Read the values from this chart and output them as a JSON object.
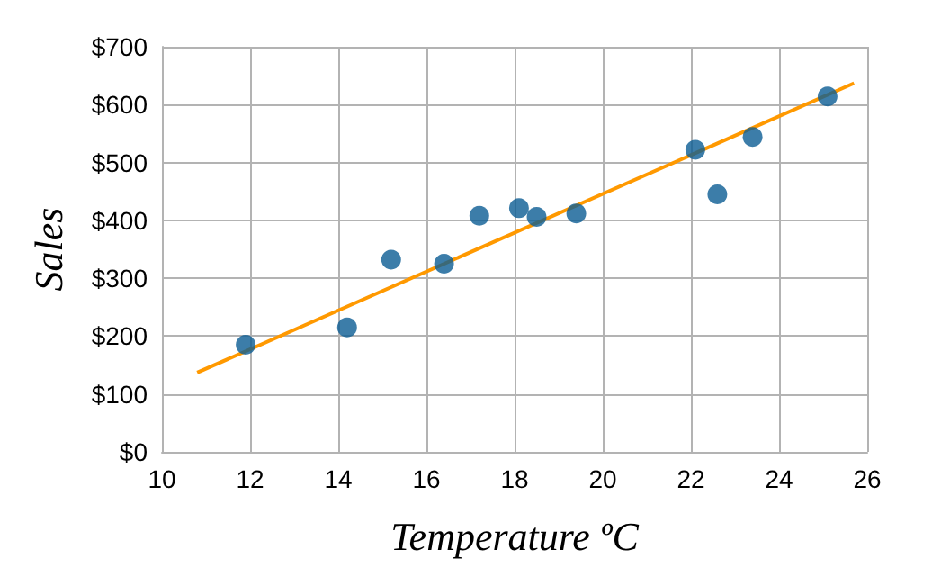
{
  "chart_data": {
    "type": "scatter",
    "xlabel": "Temperature ºC",
    "ylabel": "Sales",
    "xlim": [
      10,
      26
    ],
    "xticks": [
      10,
      12,
      14,
      16,
      18,
      20,
      22,
      24,
      26
    ],
    "ylim": [
      0,
      700
    ],
    "yticks": [
      {
        "value": 0,
        "label": "$0"
      },
      {
        "value": 100,
        "label": "$100"
      },
      {
        "value": 200,
        "label": "$200"
      },
      {
        "value": 300,
        "label": "$300"
      },
      {
        "value": 400,
        "label": "$400"
      },
      {
        "value": 500,
        "label": "$500"
      },
      {
        "value": 600,
        "label": "$600"
      },
      {
        "value": 700,
        "label": "$700"
      }
    ],
    "grid": true,
    "series": [
      {
        "marker": "circle",
        "color": "#0b5c94",
        "x": [
          14.2,
          16.4,
          11.9,
          15.2,
          18.5,
          22.1,
          19.4,
          25.1,
          23.4,
          18.1,
          22.6,
          17.2
        ],
        "values": [
          215,
          325,
          185,
          332,
          406,
          522,
          412,
          614,
          544,
          421,
          445,
          408
        ]
      },
      {
        "type": "line",
        "marker": "none",
        "color": "#ff9900",
        "x": [
          10.8,
          25.7
        ],
        "values": [
          137,
          637
        ]
      }
    ]
  }
}
